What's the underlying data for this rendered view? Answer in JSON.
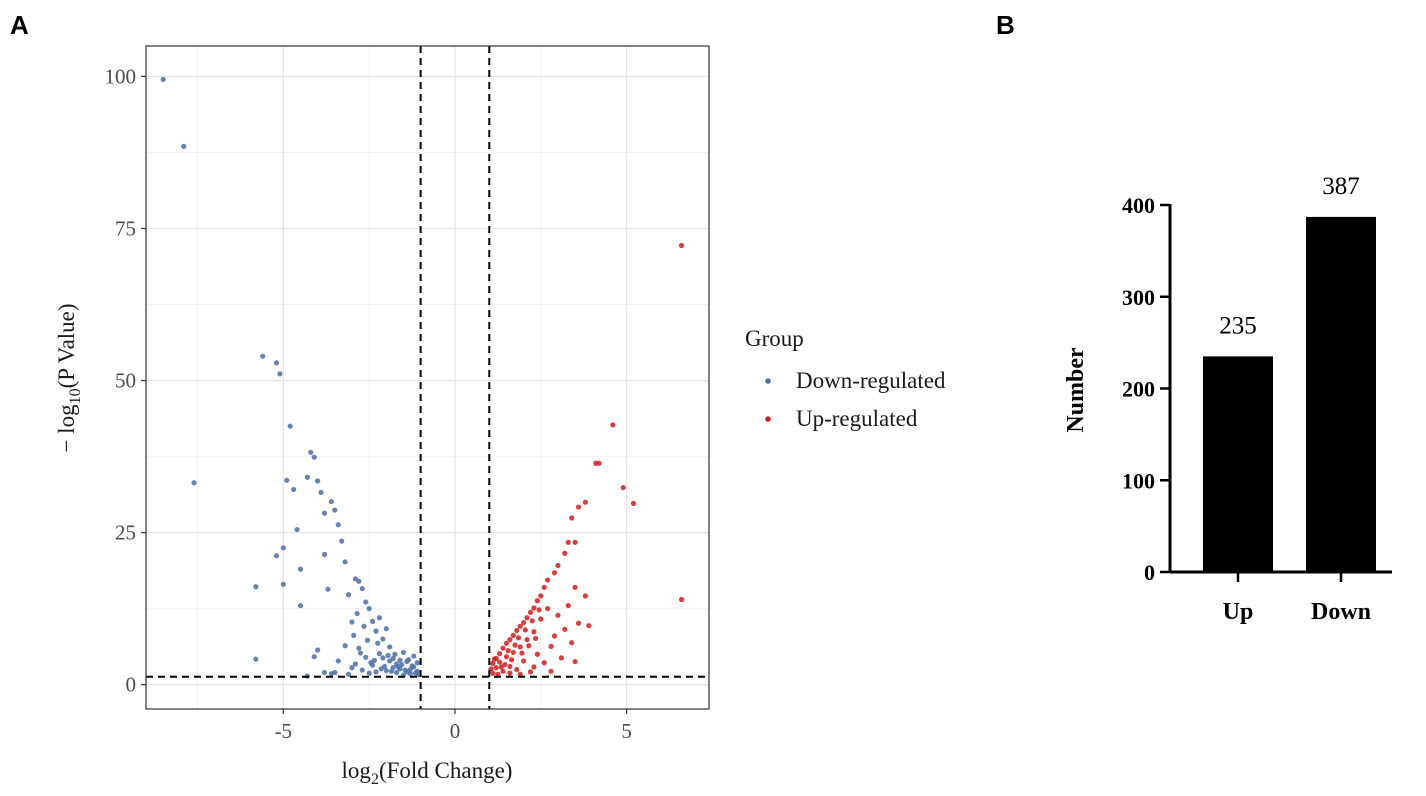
{
  "panels": {
    "a": "A",
    "b": "B"
  },
  "chart_data": [
    {
      "type": "scatter",
      "title": "",
      "xlabel_base": "log",
      "xlabel_sub": "2",
      "xlabel_rest": "(Fold Change)",
      "ylabel_prefix": "− log",
      "ylabel_sub": "10",
      "ylabel_rest": "(P Value)",
      "xlim": [
        -9,
        7.4
      ],
      "ylim": [
        -4,
        105
      ],
      "xticks": [
        -5,
        0,
        5
      ],
      "xtick_labels": [
        "-5",
        "0",
        "5"
      ],
      "yticks": [
        0,
        25,
        50,
        75,
        100
      ],
      "ytick_labels": [
        "0",
        "25",
        "50",
        "75",
        "100"
      ],
      "thresholds": {
        "vlines": [
          -1,
          1
        ],
        "hline": 1.3
      },
      "grid": true,
      "legend": {
        "title": "Group",
        "position": "right",
        "entries": [
          {
            "name": "Down-regulated",
            "color": "#4a6fa5"
          },
          {
            "name": "Up-regulated",
            "color": "#cc1f1f"
          }
        ]
      },
      "series": [
        {
          "name": "Down-regulated",
          "color": "#4a6fa5",
          "points": [
            [
              -8.5,
              99.5
            ],
            [
              -7.9,
              88.5
            ],
            [
              -7.6,
              33.2
            ],
            [
              -5.8,
              16.1
            ],
            [
              -5.8,
              4.2
            ],
            [
              -5.6,
              54.0
            ],
            [
              -5.2,
              52.9
            ],
            [
              -5.1,
              51.1
            ],
            [
              -5.2,
              21.2
            ],
            [
              -5.0,
              22.5
            ],
            [
              -5.0,
              16.5
            ],
            [
              -4.9,
              33.6
            ],
            [
              -4.8,
              42.5
            ],
            [
              -4.7,
              32.1
            ],
            [
              -4.6,
              25.5
            ],
            [
              -4.5,
              19.0
            ],
            [
              -4.5,
              13.0
            ],
            [
              -4.3,
              34.1
            ],
            [
              -4.2,
              38.2
            ],
            [
              -4.1,
              37.4
            ],
            [
              -4.0,
              33.5
            ],
            [
              -3.9,
              31.6
            ],
            [
              -3.8,
              28.2
            ],
            [
              -3.8,
              21.4
            ],
            [
              -3.7,
              15.7
            ],
            [
              -3.6,
              30.1
            ],
            [
              -3.5,
              28.7
            ],
            [
              -3.4,
              26.3
            ],
            [
              -3.3,
              23.6
            ],
            [
              -3.2,
              20.2
            ],
            [
              -3.1,
              14.8
            ],
            [
              -3.0,
              10.3
            ],
            [
              -2.9,
              17.4
            ],
            [
              -2.8,
              17.0
            ],
            [
              -2.7,
              15.8
            ],
            [
              -2.6,
              13.6
            ],
            [
              -2.5,
              12.5
            ],
            [
              -2.4,
              10.4
            ],
            [
              -2.3,
              8.8
            ],
            [
              -2.2,
              11.0
            ],
            [
              -2.1,
              7.5
            ],
            [
              -2.0,
              9.2
            ],
            [
              -3.2,
              6.4
            ],
            [
              -3.4,
              3.9
            ],
            [
              -2.6,
              4.5
            ],
            [
              -3.0,
              2.8
            ],
            [
              -3.5,
              2.0
            ],
            [
              -4.0,
              5.7
            ],
            [
              -4.1,
              4.6
            ],
            [
              -4.3,
              1.4
            ],
            [
              -3.8,
              2.0
            ],
            [
              -2.8,
              6.0
            ],
            [
              -3.6,
              1.8
            ],
            [
              -2.4,
              3.2
            ],
            [
              -2.2,
              5.1
            ],
            [
              -1.9,
              6.2
            ],
            [
              -1.8,
              4.3
            ],
            [
              -1.7,
              3.4
            ],
            [
              -1.6,
              2.6
            ],
            [
              -1.5,
              5.3
            ],
            [
              -1.4,
              3.8
            ],
            [
              -1.3,
              2.5
            ],
            [
              -1.2,
              2.9
            ],
            [
              -1.1,
              2.2
            ],
            [
              -1.1,
              3.6
            ],
            [
              -1.2,
              4.7
            ],
            [
              -1.3,
              1.8
            ],
            [
              -1.4,
              2.1
            ],
            [
              -1.5,
              1.6
            ],
            [
              -1.6,
              4.0
            ],
            [
              -1.7,
              2.0
            ],
            [
              -1.8,
              2.8
            ],
            [
              -1.9,
              3.9
            ],
            [
              -2.0,
              2.3
            ],
            [
              -2.1,
              4.4
            ],
            [
              -2.3,
              2.1
            ],
            [
              -2.5,
              1.9
            ],
            [
              -2.7,
              2.4
            ],
            [
              -2.9,
              3.4
            ],
            [
              -3.1,
              1.7
            ],
            [
              -1.05,
              1.6
            ],
            [
              -1.15,
              1.9
            ],
            [
              -1.25,
              3.1
            ],
            [
              -1.35,
              4.1
            ],
            [
              -1.45,
              2.4
            ],
            [
              -1.55,
              3.3
            ],
            [
              -1.65,
              2.9
            ],
            [
              -1.75,
              5.0
            ],
            [
              -1.85,
              2.2
            ],
            [
              -1.95,
              4.8
            ],
            [
              -2.05,
              3.0
            ],
            [
              -2.15,
              2.6
            ],
            [
              -2.25,
              6.8
            ],
            [
              -2.35,
              4.0
            ],
            [
              -2.45,
              3.6
            ],
            [
              -2.55,
              7.3
            ],
            [
              -2.65,
              9.6
            ],
            [
              -2.75,
              5.2
            ],
            [
              -2.85,
              11.7
            ],
            [
              -2.95,
              8.1
            ]
          ]
        },
        {
          "name": "Up-regulated",
          "color": "#cc1f1f",
          "points": [
            [
              6.6,
              72.2
            ],
            [
              6.6,
              14.0
            ],
            [
              4.6,
              42.7
            ],
            [
              4.2,
              36.4
            ],
            [
              4.1,
              36.4
            ],
            [
              4.9,
              32.4
            ],
            [
              5.2,
              29.8
            ],
            [
              3.8,
              30.0
            ],
            [
              3.6,
              29.2
            ],
            [
              3.4,
              27.4
            ],
            [
              3.5,
              23.4
            ],
            [
              3.3,
              23.4
            ],
            [
              3.2,
              21.6
            ],
            [
              3.0,
              19.6
            ],
            [
              2.9,
              18.4
            ],
            [
              2.7,
              17.2
            ],
            [
              2.6,
              16.0
            ],
            [
              2.5,
              14.6
            ],
            [
              2.4,
              13.8
            ],
            [
              2.3,
              12.6
            ],
            [
              2.2,
              11.9
            ],
            [
              2.1,
              11.0
            ],
            [
              2.0,
              10.2
            ],
            [
              1.9,
              9.6
            ],
            [
              1.8,
              8.9
            ],
            [
              1.7,
              8.1
            ],
            [
              1.6,
              7.4
            ],
            [
              1.5,
              6.8
            ],
            [
              1.4,
              6.0
            ],
            [
              1.3,
              5.1
            ],
            [
              1.2,
              4.3
            ],
            [
              1.1,
              3.5
            ],
            [
              1.05,
              2.6
            ],
            [
              1.1,
              1.9
            ],
            [
              1.2,
              2.8
            ],
            [
              1.3,
              3.7
            ],
            [
              1.4,
              2.2
            ],
            [
              1.5,
              4.6
            ],
            [
              1.6,
              3.0
            ],
            [
              1.7,
              5.3
            ],
            [
              1.8,
              2.5
            ],
            [
              1.9,
              6.2
            ],
            [
              2.0,
              3.9
            ],
            [
              2.1,
              7.4
            ],
            [
              2.2,
              2.1
            ],
            [
              2.3,
              8.7
            ],
            [
              2.4,
              5.0
            ],
            [
              2.5,
              10.8
            ],
            [
              2.6,
              3.6
            ],
            [
              2.7,
              12.5
            ],
            [
              2.8,
              6.3
            ],
            [
              2.9,
              8.0
            ],
            [
              3.0,
              11.4
            ],
            [
              3.1,
              4.4
            ],
            [
              3.2,
              9.1
            ],
            [
              3.3,
              13.0
            ],
            [
              3.4,
              6.9
            ],
            [
              3.5,
              16.0
            ],
            [
              3.6,
              10.1
            ],
            [
              3.8,
              14.6
            ],
            [
              3.9,
              9.7
            ],
            [
              3.5,
              3.8
            ],
            [
              2.8,
              2.2
            ],
            [
              2.3,
              2.9
            ],
            [
              1.9,
              1.7
            ],
            [
              1.6,
              1.9
            ],
            [
              1.35,
              2.9
            ],
            [
              1.25,
              1.7
            ],
            [
              1.15,
              4.2
            ],
            [
              1.45,
              3.3
            ],
            [
              1.55,
              5.6
            ],
            [
              1.65,
              4.1
            ],
            [
              1.75,
              6.5
            ],
            [
              1.85,
              7.7
            ],
            [
              1.95,
              5.2
            ],
            [
              2.05,
              9.0
            ],
            [
              2.15,
              6.4
            ],
            [
              2.25,
              10.5
            ],
            [
              2.35,
              7.6
            ],
            [
              2.45,
              12.3
            ]
          ]
        }
      ]
    },
    {
      "type": "bar",
      "title": "",
      "xlabel": "",
      "ylabel": "Number",
      "categories": [
        "Up",
        "Down"
      ],
      "values": [
        235,
        387
      ],
      "value_labels": [
        "235",
        "387"
      ],
      "ylim": [
        0,
        400
      ],
      "yticks": [
        0,
        100,
        200,
        300,
        400
      ],
      "ytick_labels": [
        "0",
        "100",
        "200",
        "300",
        "400"
      ],
      "bar_color": "#000000"
    }
  ]
}
